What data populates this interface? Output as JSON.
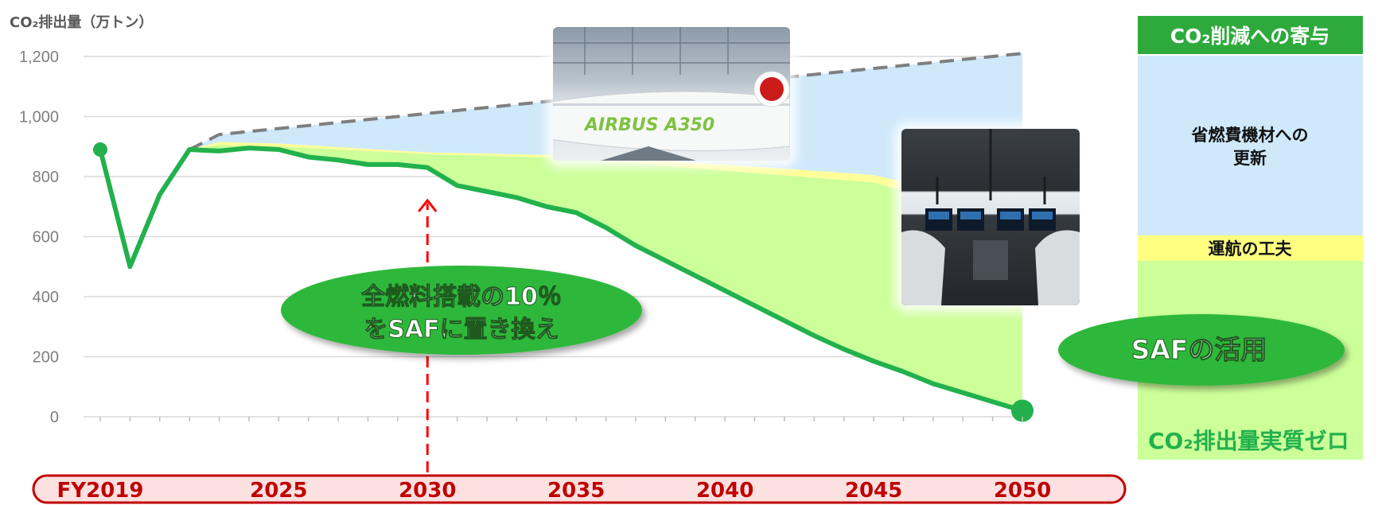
{
  "chart_data": {
    "type": "area",
    "ylabel": "CO₂排出量（万トン）",
    "ylim": [
      0,
      1200
    ],
    "y_ticks": [
      "0",
      "200",
      "400",
      "600",
      "800",
      "1,000",
      "1,200"
    ],
    "x_tick_labels": [
      {
        "year": 2019,
        "label": "FY2019"
      },
      {
        "year": 2025,
        "label": "2025"
      },
      {
        "year": 2030,
        "label": "2030"
      },
      {
        "year": 2035,
        "label": "2035"
      },
      {
        "year": 2040,
        "label": "2040"
      },
      {
        "year": 2045,
        "label": "2045"
      },
      {
        "year": 2050,
        "label": "2050"
      }
    ],
    "xlim": [
      2019,
      2050
    ],
    "series": [
      {
        "key": "bau",
        "style": "dashed",
        "color": "#7f7f7f",
        "x": [
          2022,
          2023,
          2050
        ],
        "values": [
          890,
          940,
          1210
        ]
      },
      {
        "key": "fleet",
        "style": "area",
        "color": "#cfe9fb",
        "x": [
          2022,
          2023,
          2025,
          2030,
          2035,
          2040,
          2045,
          2050
        ],
        "values": [
          890,
          915,
          910,
          880,
          870,
          840,
          805,
          690
        ]
      },
      {
        "key": "operations",
        "style": "area",
        "color": "#ffff99",
        "x": [
          2022,
          2023,
          2025,
          2030,
          2035,
          2040,
          2045,
          2050
        ],
        "values": [
          890,
          905,
          900,
          875,
          860,
          820,
          780,
          645
        ]
      },
      {
        "key": "actual",
        "style": "line",
        "color": "#22b14c",
        "x": [
          2019,
          2020,
          2021,
          2022,
          2023,
          2024,
          2025,
          2026,
          2027,
          2028,
          2029,
          2030,
          2031,
          2032,
          2033,
          2034,
          2035,
          2036,
          2037,
          2038,
          2039,
          2040,
          2041,
          2042,
          2043,
          2044,
          2045,
          2046,
          2047,
          2048,
          2049,
          2050
        ],
        "values": [
          890,
          500,
          740,
          890,
          885,
          895,
          890,
          865,
          855,
          840,
          840,
          830,
          770,
          750,
          730,
          700,
          680,
          630,
          570,
          520,
          470,
          420,
          370,
          320,
          270,
          225,
          185,
          150,
          110,
          80,
          50,
          20
        ]
      }
    ],
    "legend_panel": {
      "title": "CO₂削減への寄与",
      "items": [
        {
          "label": "省燃費機材への\n更新",
          "color": "#cfe9fb"
        },
        {
          "label": "運航の工夫",
          "color": "#ffff80"
        },
        {
          "label": "SAFの活用",
          "color": "#ccff99"
        }
      ]
    },
    "annotations": {
      "saf_2030": "全燃料搭載の10％\nをSAFに置き換え",
      "saf_2030_year": 2030,
      "net_zero": "CO₂排出量実質ゼロ"
    },
    "grid": true
  },
  "photos": {
    "aircraft_text": "AIRBUS A350"
  },
  "colors": {
    "green_line": "#22b14c",
    "axis_band_fill": "#fde0e0",
    "axis_band_stroke": "#c00000",
    "arrow": "#ff0000"
  }
}
